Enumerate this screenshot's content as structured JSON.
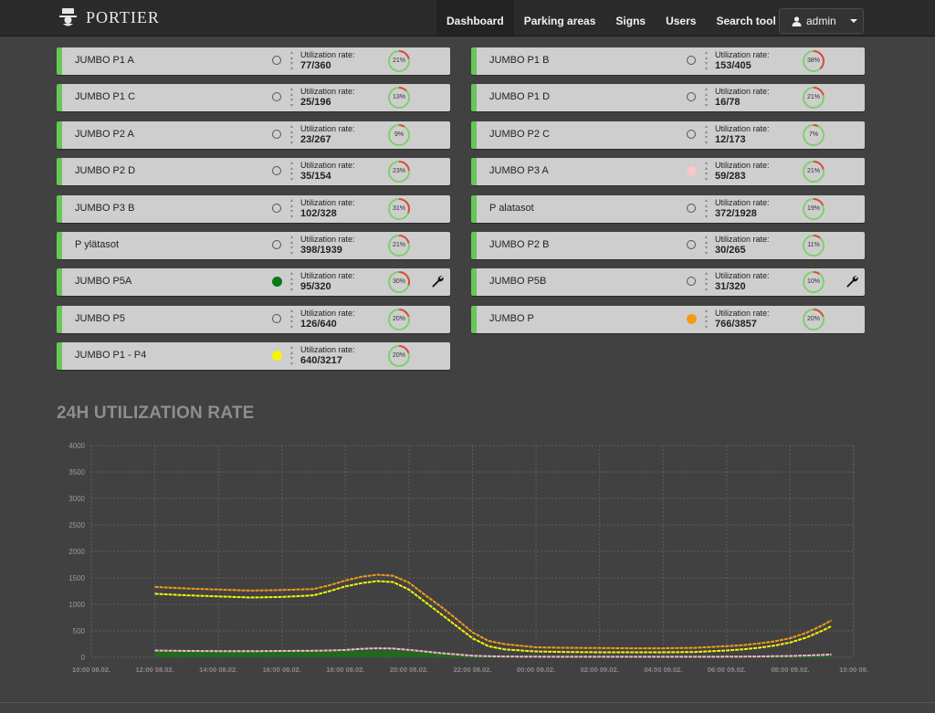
{
  "brand": {
    "name": "PORTIER"
  },
  "nav": {
    "items": [
      {
        "label": "Dashboard",
        "active": true
      },
      {
        "label": "Parking areas",
        "active": false
      },
      {
        "label": "Signs",
        "active": false
      },
      {
        "label": "Users",
        "active": false
      },
      {
        "label": "Search tool",
        "active": false
      }
    ],
    "user": {
      "icon": "user-icon",
      "label": "admin"
    }
  },
  "cards": [
    {
      "name": "JUMBO P1 A",
      "status": "none",
      "label": "Utilization rate:",
      "value": "77/360",
      "pct": "21%",
      "ratio": 0.21,
      "wrench": false
    },
    {
      "name": "JUMBO P1 B",
      "status": "none",
      "label": "Utilization rate:",
      "value": "153/405",
      "pct": "38%",
      "ratio": 0.38,
      "wrench": false
    },
    {
      "name": "JUMBO P1 C",
      "status": "none",
      "label": "Utilization rate:",
      "value": "25/196",
      "pct": "13%",
      "ratio": 0.13,
      "wrench": false
    },
    {
      "name": "JUMBO P1 D",
      "status": "none",
      "label": "Utilization rate:",
      "value": "16/78",
      "pct": "21%",
      "ratio": 0.21,
      "wrench": false
    },
    {
      "name": "JUMBO P2 A",
      "status": "none",
      "label": "Utilization rate:",
      "value": "23/267",
      "pct": "9%",
      "ratio": 0.09,
      "wrench": false
    },
    {
      "name": "JUMBO P2 C",
      "status": "none",
      "label": "Utilization rate:",
      "value": "12/173",
      "pct": "7%",
      "ratio": 0.07,
      "wrench": false
    },
    {
      "name": "JUMBO P2 D",
      "status": "none",
      "label": "Utilization rate:",
      "value": "35/154",
      "pct": "23%",
      "ratio": 0.23,
      "wrench": false
    },
    {
      "name": "JUMBO P3 A",
      "status": "pink",
      "label": "Utilization rate:",
      "value": "59/283",
      "pct": "21%",
      "ratio": 0.21,
      "wrench": false
    },
    {
      "name": "JUMBO P3 B",
      "status": "none",
      "label": "Utilization rate:",
      "value": "102/328",
      "pct": "31%",
      "ratio": 0.31,
      "wrench": false
    },
    {
      "name": "P alatasot",
      "status": "none",
      "label": "Utilization rate:",
      "value": "372/1928",
      "pct": "19%",
      "ratio": 0.19,
      "wrench": false
    },
    {
      "name": "P ylätasot",
      "status": "none",
      "label": "Utilization rate:",
      "value": "398/1939",
      "pct": "21%",
      "ratio": 0.21,
      "wrench": false
    },
    {
      "name": "JUMBO P2 B",
      "status": "none",
      "label": "Utilization rate:",
      "value": "30/265",
      "pct": "11%",
      "ratio": 0.11,
      "wrench": false
    },
    {
      "name": "JUMBO P5A",
      "status": "green",
      "label": "Utilization rate:",
      "value": "95/320",
      "pct": "30%",
      "ratio": 0.3,
      "wrench": true
    },
    {
      "name": "JUMBO P5B",
      "status": "none",
      "label": "Utilization rate:",
      "value": "31/320",
      "pct": "10%",
      "ratio": 0.1,
      "wrench": true
    },
    {
      "name": "JUMBO P5",
      "status": "none",
      "label": "Utilization rate:",
      "value": "126/640",
      "pct": "20%",
      "ratio": 0.2,
      "wrench": false
    },
    {
      "name": "JUMBO P",
      "status": "orange",
      "label": "Utilization rate:",
      "value": "766/3857",
      "pct": "20%",
      "ratio": 0.2,
      "wrench": false
    },
    {
      "name": "JUMBO P1 - P4",
      "status": "yellow",
      "label": "Utilization rate:",
      "value": "640/3217",
      "pct": "20%",
      "ratio": 0.2,
      "wrench": false
    }
  ],
  "colors": {
    "card_accent": "#66c656",
    "gauge_green": "#7ed06e",
    "gauge_red": "#e0473a"
  },
  "chart_section": {
    "title": "24H UTILIZATION RATE"
  },
  "chart_data": {
    "type": "line",
    "title": "24H UTILIZATION RATE",
    "xlabel": "",
    "ylabel": "",
    "ylim": [
      0,
      4000
    ],
    "yticks": [
      0,
      500,
      1000,
      1500,
      2000,
      2500,
      3000,
      3500,
      4000
    ],
    "xtick_labels": [
      "10:00 08.02.",
      "12:00 08.02.",
      "14:00 08.02.",
      "16:00 08.02.",
      "18:00 08.02.",
      "20:00 08.02.",
      "22:00 08.02.",
      "00:00 09.02.",
      "02:00 09.02.",
      "04:00 09.02.",
      "06:00 09.02.",
      "08:00 09.02.",
      "10:00 09."
    ],
    "x_hours": [
      12,
      13,
      14,
      15,
      16,
      17,
      17.5,
      18,
      18.5,
      19,
      19.5,
      20,
      20.5,
      21,
      21.5,
      22,
      22.5,
      23,
      24,
      25,
      26,
      27,
      28,
      29,
      30,
      30.5,
      31,
      31.5,
      32,
      32.5,
      33,
      33.3
    ],
    "grid": true,
    "legend": "none",
    "series": [
      {
        "color": "#f29a1e",
        "values": [
          1330,
          1300,
          1280,
          1260,
          1270,
          1290,
          1360,
          1450,
          1520,
          1560,
          1540,
          1410,
          1180,
          960,
          720,
          470,
          310,
          250,
          190,
          180,
          175,
          170,
          170,
          180,
          210,
          230,
          260,
          300,
          360,
          460,
          600,
          700
        ]
      },
      {
        "color": "#f5f50a",
        "values": [
          1200,
          1170,
          1150,
          1130,
          1140,
          1170,
          1250,
          1340,
          1400,
          1440,
          1420,
          1280,
          1050,
          820,
          590,
          360,
          210,
          150,
          110,
          100,
          95,
          95,
          95,
          100,
          130,
          150,
          180,
          220,
          280,
          370,
          500,
          590
        ]
      },
      {
        "color": "#f2b8c8",
        "values": [
          130,
          120,
          118,
          115,
          120,
          125,
          130,
          140,
          160,
          170,
          165,
          140,
          110,
          80,
          55,
          30,
          20,
          15,
          12,
          10,
          10,
          10,
          10,
          10,
          12,
          14,
          16,
          20,
          25,
          35,
          45,
          55
        ]
      },
      {
        "color": "#1e6e1a",
        "values": [
          110,
          100,
          98,
          96,
          100,
          104,
          108,
          112,
          115,
          116,
          112,
          98,
          78,
          55,
          35,
          20,
          12,
          10,
          8,
          7,
          7,
          7,
          7,
          7,
          8,
          9,
          10,
          12,
          15,
          20,
          26,
          32
        ]
      }
    ]
  }
}
